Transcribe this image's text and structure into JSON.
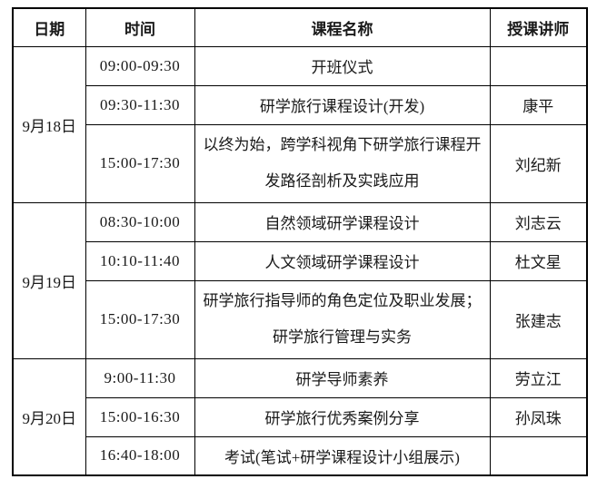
{
  "header": {
    "columns": [
      "日期",
      "时间",
      "课程名称",
      "授课讲师"
    ]
  },
  "groups": [
    {
      "date": "9月18日",
      "rows": [
        {
          "time": "09:00-09:30",
          "course": "开班仪式",
          "lecturer": ""
        },
        {
          "time": "09:30-11:30",
          "course": "研学旅行课程设计(开发)",
          "lecturer": "康平"
        },
        {
          "time": "15:00-17:30",
          "course": "以终为始，跨学科视角下研学旅行课程开发路径剖析及实践应用",
          "lecturer": "刘纪新"
        }
      ]
    },
    {
      "date": "9月19日",
      "rows": [
        {
          "time": "08:30-10:00",
          "course": "自然领域研学课程设计",
          "lecturer": "刘志云"
        },
        {
          "time": "10:10-11:40",
          "course": "人文领域研学课程设计",
          "lecturer": "杜文星"
        },
        {
          "time": "15:00-17:30",
          "course": "研学旅行指导师的角色定位及职业发展；研学旅行管理与实务",
          "lecturer": "张建志"
        }
      ]
    },
    {
      "date": "9月20日",
      "rows": [
        {
          "time": "9:00-11:30",
          "course": "研学导师素养",
          "lecturer": "劳立江"
        },
        {
          "time": "15:00-16:30",
          "course": "研学旅行优秀案例分享",
          "lecturer": "孙凤珠"
        },
        {
          "time": "16:40-18:00",
          "course": "考试(笔试+研学课程设计小组展示)",
          "lecturer": ""
        }
      ]
    }
  ],
  "colors": {
    "border": "#000000",
    "text": "#1a1a1a",
    "background": "#ffffff"
  }
}
